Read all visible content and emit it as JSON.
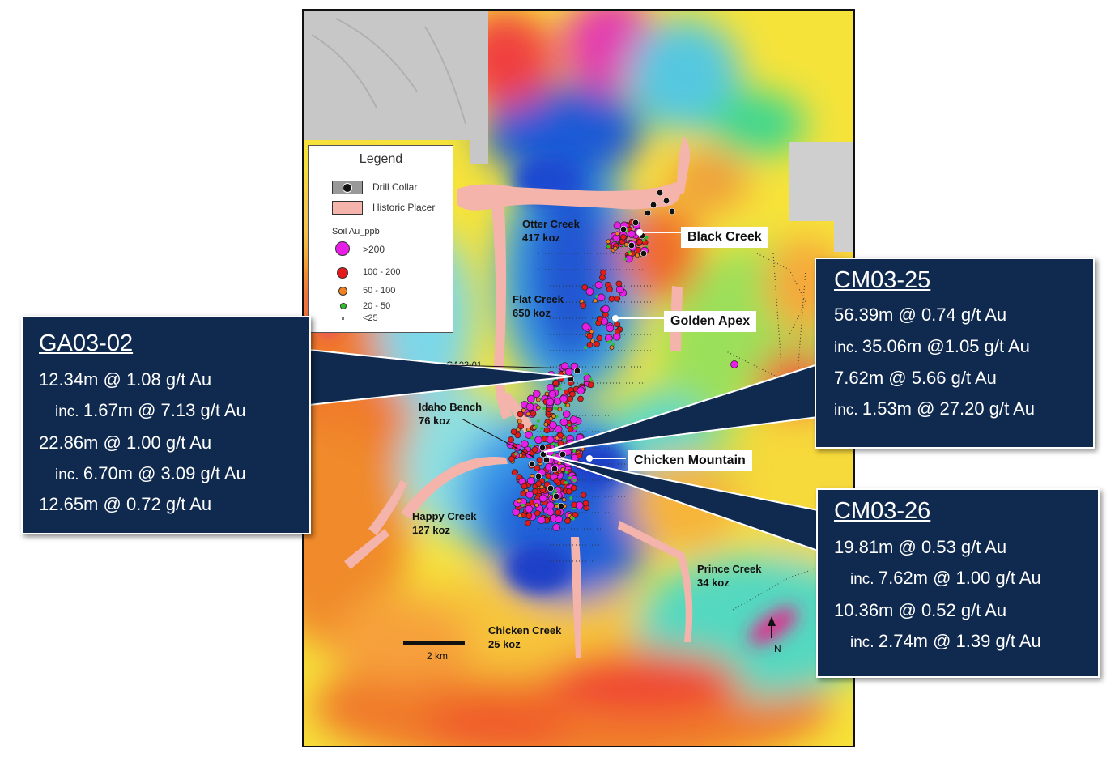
{
  "map_labels": {
    "otter_creek": {
      "name": "Otter Creek",
      "value": "417 koz"
    },
    "flat_creek": {
      "name": "Flat Creek",
      "value": "650 koz"
    },
    "idaho_bench": {
      "name": "Idaho Bench",
      "value": "76 koz"
    },
    "happy_creek": {
      "name": "Happy Creek",
      "value": "127 koz"
    },
    "prince_creek": {
      "name": "Prince Creek",
      "value": "34 koz"
    },
    "chicken_creek": {
      "name": "Chicken Creek",
      "value": "25 koz"
    },
    "ga03_01": "GA03-01",
    "scale": "2 km",
    "north": "N"
  },
  "prospects": {
    "black_creek": "Black Creek",
    "golden_apex": "Golden Apex",
    "chicken_mountain": "Chicken Mountain"
  },
  "legend": {
    "title": "Legend",
    "drill_collar": "Drill Collar",
    "historic_placer": "Historic Placer",
    "soil_title": "Soil Au_ppb",
    "soil_classes": [
      {
        "label": ">200",
        "color": "#e61ee6"
      },
      {
        "label": "100 - 200",
        "color": "#e41a1a"
      },
      {
        "label": "50 - 100",
        "color": "#f08020"
      },
      {
        "label": "20 - 50",
        "color": "#2fbf2f"
      },
      {
        "label": "<25",
        "color": "#777777"
      }
    ]
  },
  "callouts": {
    "ga03_02": {
      "title": "GA03-02",
      "lines": [
        {
          "prefix": "",
          "text": "12.34m @ 1.08 g/t Au"
        },
        {
          "prefix": "inc. ",
          "text": "1.67m @ 7.13 g/t Au"
        },
        {
          "prefix": "",
          "text": "22.86m @ 1.00 g/t Au"
        },
        {
          "prefix": "inc. ",
          "text": "6.70m @ 3.09 g/t Au"
        },
        {
          "prefix": "",
          "text": "12.65m @ 0.72 g/t Au"
        }
      ]
    },
    "cm03_25": {
      "title": "CM03-25",
      "lines": [
        {
          "prefix": "",
          "text": "56.39m @ 0.74 g/t Au"
        },
        {
          "prefix": "inc. ",
          "text": "35.06m @1.05 g/t Au"
        },
        {
          "prefix": "",
          "text": "7.62m @ 5.66 g/t Au"
        },
        {
          "prefix": "inc. ",
          "text": "1.53m @ 27.20 g/t Au"
        }
      ]
    },
    "cm03_26": {
      "title": "CM03-26",
      "lines": [
        {
          "prefix": "",
          "text": "19.81m @ 0.53 g/t Au"
        },
        {
          "prefix": "inc. ",
          "text": "7.62m @ 1.00 g/t Au"
        },
        {
          "prefix": "",
          "text": "10.36m @ 0.52 g/t Au"
        },
        {
          "prefix": "inc. ",
          "text": "2.74m @ 1.39 g/t Au"
        }
      ]
    }
  },
  "colors": {
    "callout_bg": "#0f2a4e",
    "placer": "#f4b4ac",
    "soil_high": "#e61ee6",
    "soil_mid": "#e41a1a",
    "soil_low": "#f08020",
    "soil_trace": "#2fbf2f"
  }
}
